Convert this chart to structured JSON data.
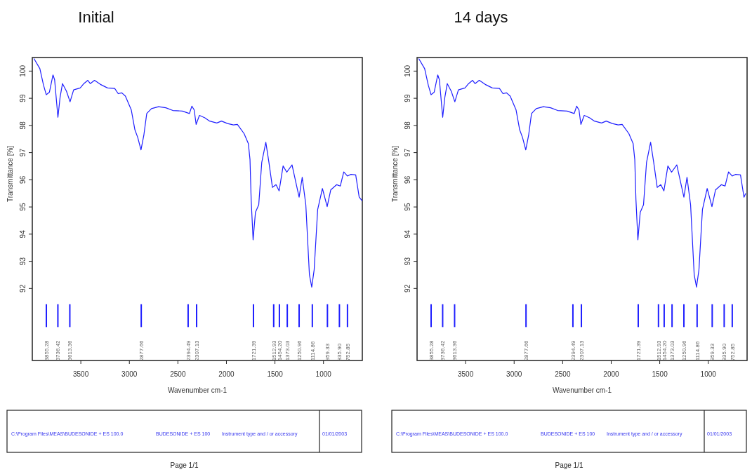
{
  "chart_data": [
    {
      "type": "line",
      "title": "Initial",
      "xlabel": "Wavenumber cm-1",
      "ylabel": "Transmittance [%]",
      "xlim": [
        4000,
        600
      ],
      "ylim": [
        89.35,
        100.5
      ],
      "xticks": [
        3500,
        3000,
        2500,
        2000,
        1500,
        1000
      ],
      "yticks": [
        92,
        93,
        94,
        95,
        96,
        97,
        98,
        99,
        100
      ],
      "x": [
        3983,
        3922,
        3885,
        3856,
        3824,
        3787,
        3770,
        3736,
        3714,
        3689,
        3648,
        3611,
        3574,
        3506,
        3469,
        3428,
        3403,
        3359,
        3298,
        3225,
        3151,
        3115,
        3078,
        3041,
        2980,
        2943,
        2914,
        2880,
        2850,
        2821,
        2772,
        2699,
        2625,
        2552,
        2454,
        2381,
        2356,
        2332,
        2312,
        2278,
        2222,
        2173,
        2099,
        2051,
        1989,
        1928,
        1887,
        1818,
        1774,
        1757,
        1745,
        1725,
        1701,
        1667,
        1636,
        1594,
        1562,
        1526,
        1489,
        1457,
        1416,
        1378,
        1324,
        1285,
        1251,
        1219,
        1182,
        1145,
        1121,
        1096,
        1060,
        1011,
        962,
        925,
        864,
        827,
        791,
        754,
        717,
        668,
        632,
        600
      ],
      "series": [
        {
          "color": "#1f1fff",
          "values": [
            100.46,
            100.09,
            99.49,
            99.13,
            99.22,
            99.86,
            99.68,
            98.3,
            99.03,
            99.54,
            99.26,
            98.87,
            99.31,
            99.38,
            99.54,
            99.66,
            99.54,
            99.66,
            99.51,
            99.38,
            99.36,
            99.17,
            99.2,
            99.08,
            98.57,
            97.84,
            97.56,
            97.1,
            97.66,
            98.44,
            98.62,
            98.69,
            98.65,
            98.55,
            98.53,
            98.44,
            98.71,
            98.57,
            98.04,
            98.37,
            98.28,
            98.16,
            98.09,
            98.16,
            98.07,
            98.02,
            98.04,
            97.7,
            97.33,
            96.74,
            95.26,
            93.79,
            94.8,
            95.08,
            96.64,
            97.38,
            96.64,
            95.72,
            95.82,
            95.59,
            96.51,
            96.28,
            96.55,
            95.91,
            95.36,
            96.09,
            95.08,
            92.51,
            92.05,
            92.69,
            94.9,
            95.68,
            95.01,
            95.63,
            95.82,
            95.77,
            96.29,
            96.14,
            96.2,
            96.18,
            95.36,
            95.22
          ]
        },
        {
          "type": "bar",
          "color": "#1f1fff",
          "x": [
            3855.28,
            3736.42,
            3613.36,
            2877.66,
            2394.49,
            2307.13,
            1721.39,
            1512.93,
            1454.2,
            1373.03,
            1250.96,
            1114.86,
            959.33,
            835.9,
            752.85
          ],
          "base": [
            90.58,
            90.58,
            90.58,
            90.58,
            90.58,
            90.58,
            90.58,
            90.58,
            90.58,
            90.58,
            90.58,
            90.58,
            90.58,
            90.58,
            90.58
          ],
          "values": [
            0.84,
            0.84,
            0.84,
            0.84,
            0.84,
            0.84,
            0.84,
            0.84,
            0.84,
            0.84,
            0.84,
            0.84,
            0.84,
            0.84,
            0.84
          ]
        }
      ],
      "annotations": [
        {
          "text": "3855.28",
          "x": 3855.28,
          "y": 90.58
        },
        {
          "text": "3736.42",
          "x": 3736.42,
          "y": 90.58
        },
        {
          "text": "3613.36",
          "x": 3613.36,
          "y": 90.58
        },
        {
          "text": "2877.66",
          "x": 2877.66,
          "y": 90.58
        },
        {
          "text": "2394.49",
          "x": 2394.49,
          "y": 90.58
        },
        {
          "text": "2307.13",
          "x": 2307.13,
          "y": 90.58
        },
        {
          "text": "1721.39",
          "x": 1721.39,
          "y": 90.58
        },
        {
          "text": "1512.93",
          "x": 1512.93,
          "y": 90.58
        },
        {
          "text": "1454.20",
          "x": 1454.2,
          "y": 90.58
        },
        {
          "text": "1373.03",
          "x": 1373.03,
          "y": 90.58
        },
        {
          "text": "1250.96",
          "x": 1250.96,
          "y": 90.58
        },
        {
          "text": "1114.86",
          "x": 1114.86,
          "y": 90.58
        },
        {
          "text": "959.33",
          "x": 959.33,
          "y": 90.58
        },
        {
          "text": "835.90",
          "x": 835.9,
          "y": 90.58
        },
        {
          "text": "752.85",
          "x": 752.85,
          "y": 90.58
        },
        "C:\\Program Files\\MEAS\\BUDESONIDE + ES 100.0",
        "BUDESONIDE + ES 100",
        "Instrument type and / or accessory",
        "01/01/2003",
        "Page 1/1"
      ]
    },
    {
      "type": "line",
      "title": "14 days",
      "xlabel": "Wavenumber cm-1",
      "ylabel": "Transmittance [%]",
      "xlim": [
        4000,
        600
      ],
      "ylim": [
        89.35,
        100.5
      ],
      "xticks": [
        3500,
        3000,
        2500,
        2000,
        1500,
        1000
      ],
      "yticks": [
        92,
        93,
        94,
        95,
        96,
        97,
        98,
        99,
        100
      ],
      "x": [
        3983,
        3922,
        3885,
        3856,
        3824,
        3787,
        3770,
        3736,
        3714,
        3689,
        3648,
        3611,
        3574,
        3506,
        3469,
        3428,
        3403,
        3359,
        3298,
        3225,
        3151,
        3115,
        3078,
        3041,
        2980,
        2943,
        2914,
        2880,
        2850,
        2821,
        2772,
        2699,
        2625,
        2552,
        2454,
        2381,
        2356,
        2332,
        2312,
        2278,
        2222,
        2173,
        2099,
        2051,
        1989,
        1928,
        1887,
        1818,
        1774,
        1757,
        1745,
        1725,
        1701,
        1667,
        1636,
        1594,
        1562,
        1526,
        1489,
        1457,
        1416,
        1378,
        1324,
        1285,
        1251,
        1219,
        1182,
        1145,
        1121,
        1096,
        1060,
        1011,
        962,
        925,
        864,
        827,
        791,
        754,
        717,
        668,
        632,
        614
      ],
      "series": [
        {
          "color": "#1f1fff",
          "values": [
            100.46,
            100.09,
            99.49,
            99.13,
            99.22,
            99.86,
            99.68,
            98.3,
            99.03,
            99.54,
            99.26,
            98.87,
            99.31,
            99.38,
            99.54,
            99.66,
            99.54,
            99.66,
            99.51,
            99.38,
            99.36,
            99.17,
            99.2,
            99.08,
            98.57,
            97.84,
            97.56,
            97.1,
            97.66,
            98.44,
            98.62,
            98.69,
            98.65,
            98.55,
            98.53,
            98.44,
            98.71,
            98.57,
            98.04,
            98.37,
            98.28,
            98.16,
            98.09,
            98.16,
            98.07,
            98.02,
            98.04,
            97.7,
            97.33,
            96.74,
            95.26,
            93.79,
            94.8,
            95.08,
            96.64,
            97.38,
            96.64,
            95.72,
            95.82,
            95.59,
            96.51,
            96.28,
            96.55,
            95.91,
            95.36,
            96.09,
            95.08,
            92.51,
            92.05,
            92.69,
            94.9,
            95.68,
            95.01,
            95.63,
            95.82,
            95.77,
            96.29,
            96.14,
            96.2,
            96.18,
            95.36,
            95.5
          ]
        },
        {
          "type": "bar",
          "color": "#1f1fff",
          "x": [
            3855.28,
            3736.42,
            3613.36,
            2877.66,
            2394.49,
            2307.13,
            1721.39,
            1512.93,
            1454.2,
            1373.03,
            1250.96,
            1114.86,
            959.33,
            835.9,
            752.85
          ],
          "base": [
            90.58,
            90.58,
            90.58,
            90.58,
            90.58,
            90.58,
            90.58,
            90.58,
            90.58,
            90.58,
            90.58,
            90.58,
            90.58,
            90.58,
            90.58
          ],
          "values": [
            0.84,
            0.84,
            0.84,
            0.84,
            0.84,
            0.84,
            0.84,
            0.84,
            0.84,
            0.84,
            0.84,
            0.84,
            0.84,
            0.84,
            0.84
          ]
        }
      ],
      "annotations": [
        {
          "text": "3855.28",
          "x": 3855.28,
          "y": 90.58
        },
        {
          "text": "3736.42",
          "x": 3736.42,
          "y": 90.58
        },
        {
          "text": "3613.36",
          "x": 3613.36,
          "y": 90.58
        },
        {
          "text": "2877.66",
          "x": 2877.66,
          "y": 90.58
        },
        {
          "text": "2394.49",
          "x": 2394.49,
          "y": 90.58
        },
        {
          "text": "2307.13",
          "x": 2307.13,
          "y": 90.58
        },
        {
          "text": "1721.39",
          "x": 1721.39,
          "y": 90.58
        },
        {
          "text": "1512.93",
          "x": 1512.93,
          "y": 90.58
        },
        {
          "text": "1454.20",
          "x": 1454.2,
          "y": 90.58
        },
        {
          "text": "1373.03",
          "x": 1373.03,
          "y": 90.58
        },
        {
          "text": "1250.96",
          "x": 1250.96,
          "y": 90.58
        },
        {
          "text": "1114.86",
          "x": 1114.86,
          "y": 90.58
        },
        {
          "text": "959.33",
          "x": 959.33,
          "y": 90.58
        },
        {
          "text": "835.90",
          "x": 835.9,
          "y": 90.58
        },
        {
          "text": "752.85",
          "x": 752.85,
          "y": 90.58
        },
        "C:\\Program Files\\MEAS\\BUDESONIDE + ES 100.0",
        "BUDESONIDE + ES 100",
        "Instrument type and / or accessory",
        "01/01/2003",
        "Page 1/1"
      ]
    }
  ]
}
